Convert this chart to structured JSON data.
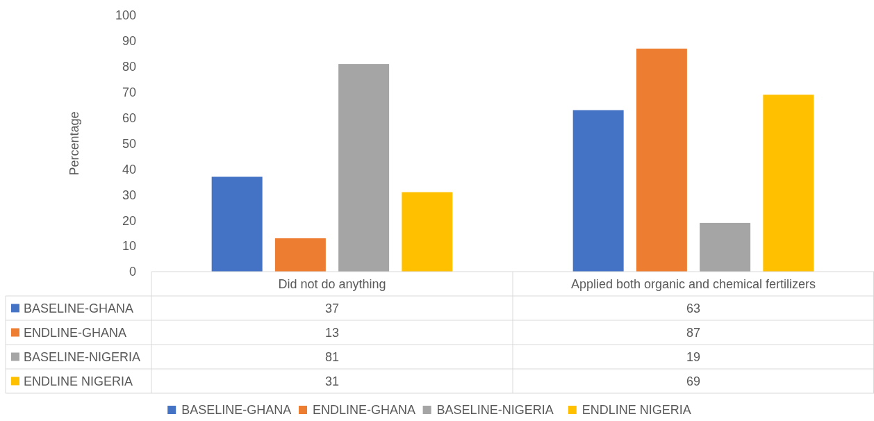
{
  "chart_data": {
    "type": "bar",
    "ylabel": "Percentage",
    "categories": [
      "Did not do anything",
      "Applied both organic and chemical fertilizers"
    ],
    "series": [
      {
        "name": "BASELINE-GHANA",
        "color": "#4472c4",
        "values": [
          37,
          63
        ]
      },
      {
        "name": "ENDLINE-GHANA",
        "color": "#ed7d31",
        "values": [
          13,
          87
        ]
      },
      {
        "name": "BASELINE-NIGERIA",
        "color": "#a5a5a5",
        "values": [
          81,
          19
        ]
      },
      {
        "name": "ENDLINE NIGERIA",
        "color": "#ffc000",
        "values": [
          31,
          69
        ]
      }
    ],
    "ylim": [
      0,
      100
    ],
    "yticks": [
      0,
      10,
      20,
      30,
      40,
      50,
      60,
      70,
      80,
      90,
      100
    ],
    "data_labels": true,
    "legend": "bottom"
  }
}
